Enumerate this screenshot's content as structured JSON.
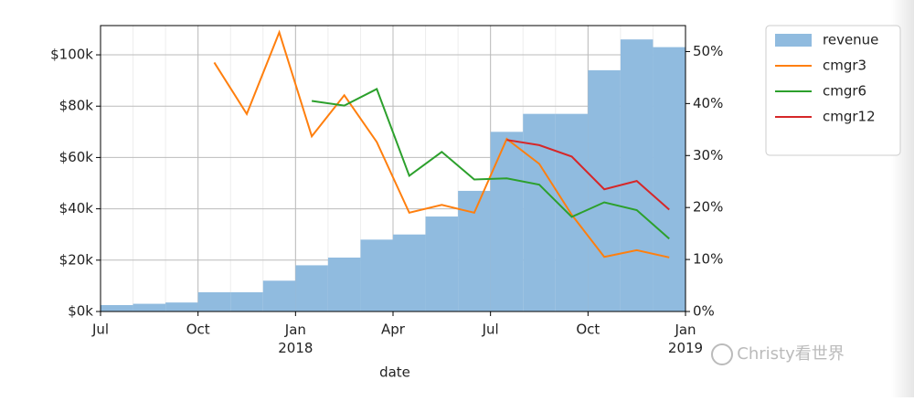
{
  "chart_data": {
    "type": "bar",
    "x_label": "date",
    "x": [
      "2017-07",
      "2017-08",
      "2017-09",
      "2017-10",
      "2017-11",
      "2017-12",
      "2018-01",
      "2018-02",
      "2018-03",
      "2018-04",
      "2018-05",
      "2018-06",
      "2018-07",
      "2018-08",
      "2018-09",
      "2018-10",
      "2018-11",
      "2018-12"
    ],
    "xlim": [
      "2017-07",
      "2019-01"
    ],
    "xticks": [
      {
        "value": "2017-07",
        "label": "Jul"
      },
      {
        "value": "2017-10",
        "label": "Oct"
      },
      {
        "value": "2018-01",
        "label": "Jan 2018"
      },
      {
        "value": "2018-04",
        "label": "Apr"
      },
      {
        "value": "2018-07",
        "label": "Jul"
      },
      {
        "value": "2018-10",
        "label": "Oct"
      },
      {
        "value": "2019-01",
        "label": "Jan 2019"
      }
    ],
    "ylim": [
      0,
      111400
    ],
    "yticks": [
      {
        "value": 0,
        "label": "$0k"
      },
      {
        "value": 20000,
        "label": "$20k"
      },
      {
        "value": 40000,
        "label": "$40k"
      },
      {
        "value": 60000,
        "label": "$60k"
      },
      {
        "value": 80000,
        "label": "$80k"
      },
      {
        "value": 100000,
        "label": "$100k"
      }
    ],
    "y2lim": [
      0,
      55
    ],
    "y2ticks": [
      {
        "value": 0,
        "label": "0%"
      },
      {
        "value": 10,
        "label": "10%"
      },
      {
        "value": 20,
        "label": "20%"
      },
      {
        "value": 30,
        "label": "30%"
      },
      {
        "value": 40,
        "label": "40%"
      },
      {
        "value": 50,
        "label": "50%"
      }
    ],
    "grid": true,
    "legend": "outside-upper-right",
    "series": [
      {
        "name": "revenue",
        "type": "bar",
        "color": "#90bbdf",
        "values": [
          2500,
          3000,
          3500,
          7500,
          7500,
          12000,
          18000,
          21000,
          28000,
          30000,
          37000,
          47000,
          70000,
          77000,
          77000,
          94000,
          106000,
          103000
        ]
      },
      {
        "name": "cmgr3",
        "type": "line",
        "axis": "y2",
        "color": "#ff7f0e",
        "values": [
          null,
          null,
          null,
          47.9,
          38,
          53.7,
          33.7,
          41.6,
          32.6,
          19,
          20.5,
          19,
          33.2,
          28.4,
          18.6,
          10.5,
          11.8,
          10.4
        ]
      },
      {
        "name": "cmgr6",
        "type": "line",
        "axis": "y2",
        "color": "#2ca02c",
        "values": [
          null,
          null,
          null,
          null,
          null,
          null,
          40.5,
          39.6,
          42.8,
          26.1,
          30.7,
          25.4,
          25.6,
          24.4,
          18.2,
          21,
          19.5,
          14
        ]
      },
      {
        "name": "cmgr12",
        "type": "line",
        "axis": "y2",
        "color": "#d62728",
        "values": [
          null,
          null,
          null,
          null,
          null,
          null,
          null,
          null,
          null,
          null,
          null,
          null,
          33,
          32,
          29.8,
          23.5,
          25.1,
          19.6
        ]
      }
    ],
    "watermark": "Christy看世界"
  }
}
